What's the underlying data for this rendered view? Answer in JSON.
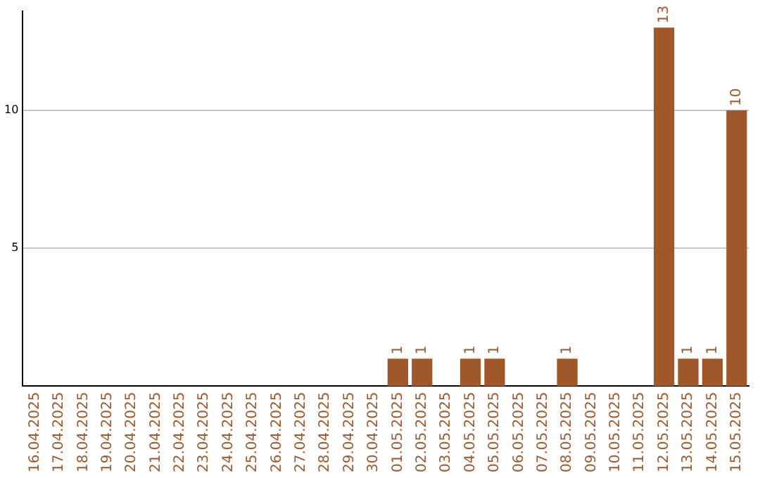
{
  "chart_data": {
    "type": "bar",
    "categories": [
      "16.04.2025",
      "17.04.2025",
      "18.04.2025",
      "19.04.2025",
      "20.04.2025",
      "21.04.2025",
      "22.04.2025",
      "23.04.2025",
      "24.04.2025",
      "25.04.2025",
      "26.04.2025",
      "27.04.2025",
      "28.04.2025",
      "29.04.2025",
      "30.04.2025",
      "01.05.2025",
      "02.05.2025",
      "03.05.2025",
      "04.05.2025",
      "05.05.2025",
      "06.05.2025",
      "07.05.2025",
      "08.05.2025",
      "09.05.2025",
      "10.05.2025",
      "11.05.2025",
      "12.05.2025",
      "13.05.2025",
      "14.05.2025",
      "15.05.2025"
    ],
    "values": [
      null,
      null,
      null,
      null,
      null,
      null,
      null,
      null,
      null,
      null,
      null,
      null,
      null,
      null,
      null,
      1,
      1,
      null,
      1,
      1,
      null,
      null,
      1,
      null,
      null,
      null,
      13,
      1,
      1,
      10
    ],
    "color": "#a0582a",
    "ylim": [
      0,
      13.6
    ],
    "yticks": [
      5,
      10
    ],
    "grid": "y",
    "data_labels": true,
    "legend": false
  }
}
